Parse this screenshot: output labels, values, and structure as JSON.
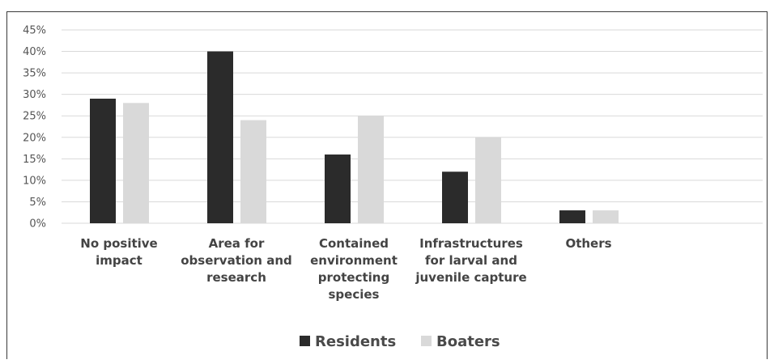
{
  "chart_data": {
    "type": "bar",
    "categories": [
      [
        "No positive",
        "impact"
      ],
      [
        "Area for",
        "observation and",
        "research"
      ],
      [
        "Contained",
        "environment",
        "protecting",
        "species"
      ],
      [
        "Infrastructures",
        "for larval and",
        "juvenile capture"
      ],
      [
        "Others"
      ]
    ],
    "series": [
      {
        "name": "Residents",
        "values": [
          29,
          40,
          16,
          12,
          3
        ],
        "color": "#2b2b2b"
      },
      {
        "name": "Boaters",
        "values": [
          28,
          24,
          25,
          20,
          3
        ],
        "color": "#d9d9d9"
      }
    ],
    "yticks": [
      "0%",
      "5%",
      "10%",
      "15%",
      "20%",
      "25%",
      "30%",
      "35%",
      "40%",
      "45%"
    ],
    "ylim": [
      0,
      45
    ],
    "grid": true,
    "legend": "bottom-center"
  }
}
